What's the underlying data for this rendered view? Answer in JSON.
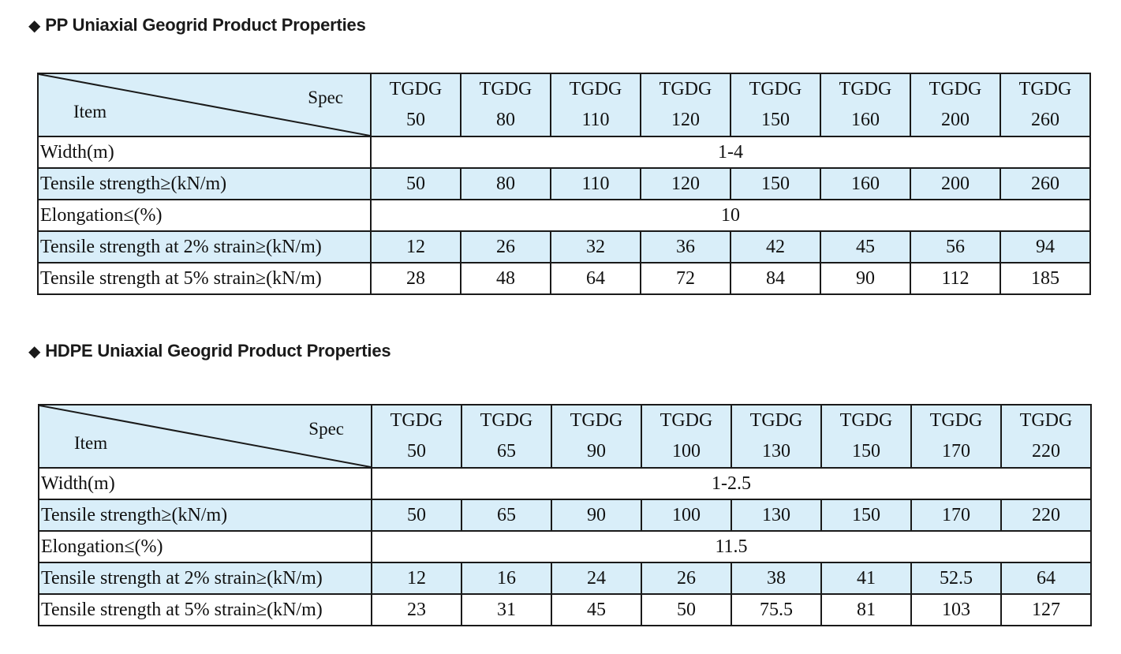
{
  "tables": [
    {
      "title": "PP Uniaxial Geogrid Product Properties",
      "header": {
        "item_label": "Item",
        "spec_label": "Spec"
      },
      "specs": [
        {
          "name": "TGDG",
          "num": "50"
        },
        {
          "name": "TGDG",
          "num": "80"
        },
        {
          "name": "TGDG",
          "num": "110"
        },
        {
          "name": "TGDG",
          "num": "120"
        },
        {
          "name": "TGDG",
          "num": "150"
        },
        {
          "name": "TGDG",
          "num": "160"
        },
        {
          "name": "TGDG",
          "num": "200"
        },
        {
          "name": "TGDG",
          "num": "260"
        }
      ],
      "rows": {
        "width": {
          "label": "Width(m)",
          "value": "1-4"
        },
        "tensile": {
          "label": "Tensile strength≥(kN/m)",
          "values": [
            "50",
            "80",
            "110",
            "120",
            "150",
            "160",
            "200",
            "260"
          ]
        },
        "elongation": {
          "label": "Elongation≤(%)",
          "value": "10"
        },
        "strain2": {
          "label": "Tensile strength at 2% strain≥(kN/m)",
          "values": [
            "12",
            "26",
            "32",
            "36",
            "42",
            "45",
            "56",
            "94"
          ]
        },
        "strain5": {
          "label": "Tensile strength at 5% strain≥(kN/m)",
          "values": [
            "28",
            "48",
            "64",
            "72",
            "84",
            "90",
            "112",
            "185"
          ]
        }
      }
    },
    {
      "title": "HDPE Uniaxial Geogrid Product Properties",
      "header": {
        "item_label": "Item",
        "spec_label": "Spec"
      },
      "specs": [
        {
          "name": "TGDG",
          "num": "50"
        },
        {
          "name": "TGDG",
          "num": "65"
        },
        {
          "name": "TGDG",
          "num": "90"
        },
        {
          "name": "TGDG",
          "num": "100"
        },
        {
          "name": "TGDG",
          "num": "130"
        },
        {
          "name": "TGDG",
          "num": "150"
        },
        {
          "name": "TGDG",
          "num": "170"
        },
        {
          "name": "TGDG",
          "num": "220"
        }
      ],
      "rows": {
        "width": {
          "label": "Width(m)",
          "value": "1-2.5"
        },
        "tensile": {
          "label": "Tensile strength≥(kN/m)",
          "values": [
            "50",
            "65",
            "90",
            "100",
            "130",
            "150",
            "170",
            "220"
          ]
        },
        "elongation": {
          "label": "Elongation≤(%)",
          "value": "11.5"
        },
        "strain2": {
          "label": "Tensile strength at 2% strain≥(kN/m)",
          "values": [
            "12",
            "16",
            "24",
            "26",
            "38",
            "41",
            "52.5",
            "64"
          ]
        },
        "strain5": {
          "label": "Tensile strength at 5% strain≥(kN/m)",
          "values": [
            "23",
            "31",
            "45",
            "50",
            "75.5",
            "81",
            "103",
            "127"
          ]
        }
      }
    }
  ],
  "colors": {
    "header_shade": "#d9eef9",
    "border": "#1a1a1a"
  },
  "icons": {
    "heading_bullet": "diamond-icon"
  }
}
